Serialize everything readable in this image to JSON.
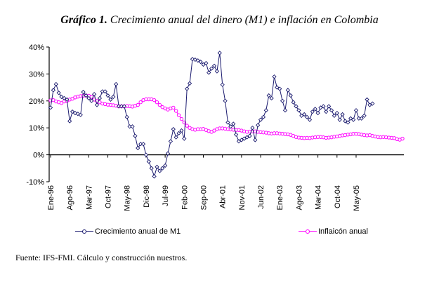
{
  "chart_data": {
    "type": "line",
    "title_prefix": "Gráfico 1.",
    "title": "Crecimiento anual del dinero (M1) e inflación en Colombia",
    "xlabel": "",
    "ylabel": "",
    "ylim": [
      -0.1,
      0.4
    ],
    "y_ticks": [
      -0.1,
      0.0,
      0.1,
      0.2,
      0.3,
      0.4
    ],
    "y_tick_labels": [
      "-10%",
      "0%",
      "10%",
      "20%",
      "30%",
      "40%"
    ],
    "x_start": "Ene-96",
    "x_tick_labels": [
      "Ene-96",
      "Ago-96",
      "Mar-97",
      "Oct-97",
      "May-98",
      "Dic-98",
      "Jul-99",
      "Feb-00",
      "Sep-00",
      "Abr-01",
      "Nov-01",
      "Jun-02",
      "Ene-03",
      "Ago-03",
      "Mar-04",
      "Oct-04",
      "May-05"
    ],
    "x_tick_step_months": 7,
    "grid": false,
    "legend_position": "bottom",
    "series": [
      {
        "name": "Crecimiento anual de M1",
        "color": "#1a1a6e",
        "marker": "diamond",
        "values": [
          0.175,
          0.24,
          0.262,
          0.23,
          0.215,
          0.21,
          0.205,
          0.125,
          0.16,
          0.155,
          0.152,
          0.148,
          0.233,
          0.22,
          0.21,
          0.2,
          0.225,
          0.185,
          0.21,
          0.235,
          0.235,
          0.22,
          0.205,
          0.215,
          0.262,
          0.18,
          0.18,
          0.18,
          0.14,
          0.105,
          0.105,
          0.07,
          0.025,
          0.04,
          0.04,
          0.0,
          -0.025,
          -0.05,
          -0.08,
          -0.045,
          -0.06,
          -0.05,
          -0.04,
          0.005,
          0.05,
          0.095,
          0.065,
          0.08,
          0.09,
          0.06,
          0.245,
          0.265,
          0.355,
          0.353,
          0.35,
          0.345,
          0.335,
          0.34,
          0.305,
          0.32,
          0.33,
          0.31,
          0.378,
          0.26,
          0.2,
          0.12,
          0.105,
          0.115,
          0.075,
          0.05,
          0.055,
          0.06,
          0.065,
          0.07,
          0.1,
          0.055,
          0.11,
          0.13,
          0.14,
          0.165,
          0.22,
          0.21,
          0.29,
          0.25,
          0.245,
          0.2,
          0.165,
          0.24,
          0.22,
          0.195,
          0.18,
          0.165,
          0.145,
          0.15,
          0.14,
          0.13,
          0.16,
          0.17,
          0.155,
          0.175,
          0.18,
          0.16,
          0.18,
          0.165,
          0.145,
          0.155,
          0.13,
          0.15,
          0.125,
          0.12,
          0.135,
          0.13,
          0.165,
          0.135,
          0.135,
          0.145,
          0.205,
          0.185,
          0.19
        ]
      },
      {
        "name": "Inflaicón anual",
        "color": "#ff00ff",
        "marker": "circle",
        "values": [
          0.202,
          0.203,
          0.198,
          0.195,
          0.192,
          0.198,
          0.2,
          0.205,
          0.208,
          0.213,
          0.216,
          0.218,
          0.219,
          0.22,
          0.219,
          0.215,
          0.205,
          0.2,
          0.195,
          0.19,
          0.188,
          0.186,
          0.185,
          0.184,
          0.182,
          0.18,
          0.18,
          0.18,
          0.181,
          0.18,
          0.179,
          0.182,
          0.185,
          0.195,
          0.203,
          0.206,
          0.206,
          0.206,
          0.203,
          0.195,
          0.185,
          0.177,
          0.172,
          0.168,
          0.172,
          0.175,
          0.163,
          0.147,
          0.133,
          0.12,
          0.108,
          0.1,
          0.095,
          0.093,
          0.095,
          0.095,
          0.096,
          0.092,
          0.088,
          0.085,
          0.09,
          0.095,
          0.098,
          0.098,
          0.097,
          0.095,
          0.094,
          0.093,
          0.092,
          0.092,
          0.09,
          0.087,
          0.085,
          0.086,
          0.087,
          0.087,
          0.085,
          0.084,
          0.083,
          0.082,
          0.08,
          0.079,
          0.08,
          0.08,
          0.079,
          0.078,
          0.077,
          0.076,
          0.074,
          0.07,
          0.066,
          0.064,
          0.063,
          0.062,
          0.063,
          0.062,
          0.064,
          0.065,
          0.066,
          0.066,
          0.065,
          0.063,
          0.064,
          0.065,
          0.067,
          0.068,
          0.07,
          0.072,
          0.073,
          0.075,
          0.076,
          0.078,
          0.078,
          0.077,
          0.075,
          0.073,
          0.072,
          0.073,
          0.07,
          0.068,
          0.066,
          0.065,
          0.066,
          0.065,
          0.064,
          0.063,
          0.062,
          0.058,
          0.056,
          0.06
        ]
      }
    ]
  },
  "source": {
    "label": "Fuente:",
    "text": "IFS-FMI. Cálculo y construcción nuestros."
  }
}
